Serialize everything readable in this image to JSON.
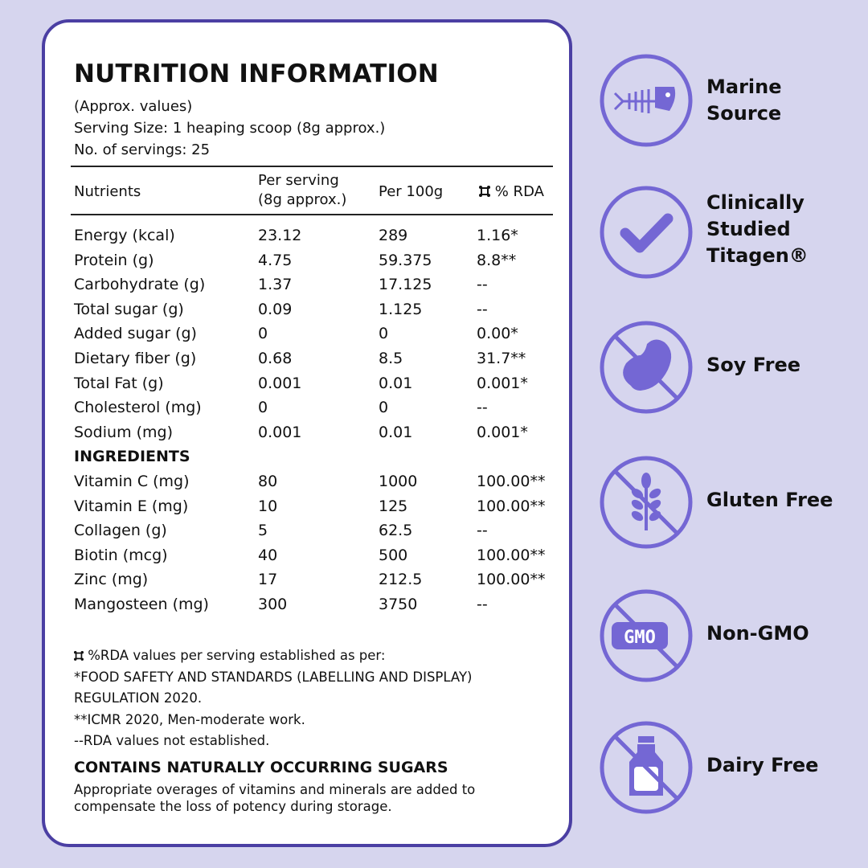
{
  "panel": {
    "title": "NUTRITION INFORMATION",
    "approx": "(Approx. values)",
    "serving_size": "Serving Size: 1 heaping scoop (8g approx.)",
    "servings": "No. of servings: 25"
  },
  "table": {
    "headers": {
      "nutrients": "Nutrients",
      "per_serving_1": "Per serving",
      "per_serving_2": "(8g approx.)",
      "per_100g": "Per 100g",
      "rda": "% RDA"
    },
    "nutrients": [
      {
        "name": "Energy (kcal)",
        "serving": "23.12",
        "per100": "289",
        "rda": "1.16*"
      },
      {
        "name": "Protein (g)",
        "serving": "4.75",
        "per100": "59.375",
        "rda": "8.8**"
      },
      {
        "name": "Carbohydrate (g)",
        "serving": "1.37",
        "per100": "17.125",
        "rda": "--"
      },
      {
        "name": "Total sugar (g)",
        "serving": "0.09",
        "per100": "1.125",
        "rda": "--"
      },
      {
        "name": "Added sugar (g)",
        "serving": "0",
        "per100": "0",
        "rda": "0.00*"
      },
      {
        "name": "Dietary fiber (g)",
        "serving": "0.68",
        "per100": "8.5",
        "rda": "31.7**"
      },
      {
        "name": "Total Fat (g)",
        "serving": "0.001",
        "per100": "0.01",
        "rda": "0.001*"
      },
      {
        "name": "Cholesterol (mg)",
        "serving": "0",
        "per100": "0",
        "rda": "--"
      },
      {
        "name": "Sodium (mg)",
        "serving": "0.001",
        "per100": "0.01",
        "rda": "0.001*"
      }
    ],
    "ingredients_heading": "INGREDIENTS",
    "ingredients": [
      {
        "name": "Vitamin C (mg)",
        "serving": "80",
        "per100": "1000",
        "rda": "100.00**"
      },
      {
        "name": "Vitamin E (mg)",
        "serving": "10",
        "per100": "125",
        "rda": "100.00**"
      },
      {
        "name": "Collagen (g)",
        "serving": "5",
        "per100": "62.5",
        "rda": "--"
      },
      {
        "name": "Biotin (mcg)",
        "serving": "40",
        "per100": "500",
        "rda": "100.00**"
      },
      {
        "name": "Zinc (mg)",
        "serving": "17",
        "per100": "212.5",
        "rda": "100.00**"
      },
      {
        "name": "Mangosteen (mg)",
        "serving": "300",
        "per100": "3750",
        "rda": "--"
      }
    ]
  },
  "footnotes": {
    "rda_basis": "%RDA values per serving established as per:",
    "fssai_1": "*FOOD SAFETY AND STANDARDS (LABELLING AND DISPLAY)",
    "fssai_2": "REGULATION 2020.",
    "icmr": "**ICMR 2020, Men-moderate work.",
    "not_established": "--RDA values not established."
  },
  "contains": "CONTAINS NATURALLY OCCURRING SUGARS",
  "overage_note": "Appropriate overages of vitamins and minerals are added to compensate the loss of potency during storage.",
  "features": [
    {
      "icon": "fish-icon",
      "line1": "Marine",
      "line2": "Source",
      "line3": ""
    },
    {
      "icon": "checkmark-icon",
      "line1": "Clinically",
      "line2": "Studied",
      "line3": "Titagen®"
    },
    {
      "icon": "soy-free-icon",
      "line1": "Soy Free",
      "line2": "",
      "line3": ""
    },
    {
      "icon": "gluten-free-icon",
      "line1": "Gluten Free",
      "line2": "",
      "line3": ""
    },
    {
      "icon": "non-gmo-icon",
      "line1": "Non-GMO",
      "line2": "",
      "line3": "",
      "badge": "GMO"
    },
    {
      "icon": "dairy-free-icon",
      "line1": "Dairy Free",
      "line2": "",
      "line3": ""
    }
  ],
  "colors": {
    "background": "#d6d5ee",
    "accent": "#7467d4",
    "border": "#4b3fa3"
  }
}
